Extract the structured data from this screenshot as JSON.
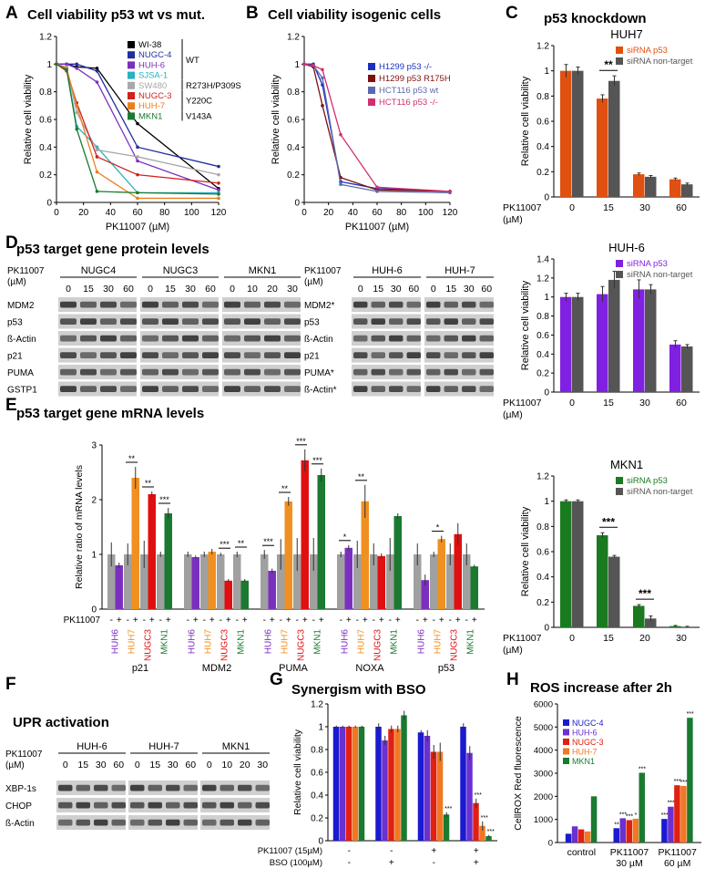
{
  "panels": {
    "A": {
      "label": "A",
      "title": "Cell viability p53 wt vs mut."
    },
    "B": {
      "label": "B",
      "title": "Cell viability isogenic cells"
    },
    "C": {
      "label": "C",
      "title": "p53 knockdown"
    },
    "D": {
      "label": "D",
      "title": "p53 target gene protein levels"
    },
    "E": {
      "label": "E",
      "title": "p53 target gene mRNA levels"
    },
    "F": {
      "label": "F",
      "title": "UPR activation"
    },
    "G": {
      "label": "G",
      "title": "Synergism with BSO"
    },
    "H": {
      "label": "H",
      "title": "ROS increase after 2h"
    }
  },
  "chart_data": [
    {
      "id": "A",
      "type": "line",
      "xlabel": "PK11007 (µM)",
      "ylabel": "Relative cell viability",
      "xlim": [
        0,
        120
      ],
      "ylim": [
        0,
        1.2
      ],
      "xticks": [
        "0",
        "20",
        "40",
        "60",
        "80",
        "100",
        "120"
      ],
      "yticks": [
        "0",
        "0.2",
        "0.4",
        "0.6",
        "0.8",
        "1",
        "1.2"
      ],
      "x": [
        0,
        7.5,
        15,
        30,
        60,
        120
      ],
      "series": [
        {
          "name": "WI-38",
          "color": "#000000",
          "values": [
            1,
            1,
            0.98,
            0.97,
            0.57,
            0.1
          ]
        },
        {
          "name": "NUGC-4",
          "color": "#1f2fa0",
          "values": [
            1,
            1,
            1,
            0.95,
            0.4,
            0.26
          ]
        },
        {
          "name": "HUH-6",
          "color": "#7b2fbf",
          "values": [
            1,
            1,
            0.97,
            0.87,
            0.3,
            0.09
          ]
        },
        {
          "name": "SJSA-1",
          "color": "#2ab0c0",
          "values": [
            1,
            0.97,
            0.55,
            0.4,
            0.07,
            0.07
          ]
        },
        {
          "name": "SW480",
          "color": "#a8a8a8",
          "values": [
            1,
            0.98,
            0.65,
            0.38,
            0.33,
            0.2
          ]
        },
        {
          "name": "NUGC-3",
          "color": "#d02020",
          "values": [
            1,
            0.95,
            0.72,
            0.33,
            0.2,
            0.14
          ]
        },
        {
          "name": "HUH-7",
          "color": "#e88020",
          "values": [
            1,
            0.97,
            0.7,
            0.22,
            0.03,
            0.03
          ]
        },
        {
          "name": "MKN1",
          "color": "#1a7a30",
          "values": [
            1,
            0.96,
            0.53,
            0.08,
            0.07,
            0.06
          ]
        }
      ],
      "groups": [
        {
          "label": "WT"
        },
        {
          "label": "R273H/P309S"
        },
        {
          "label": "Y220C"
        },
        {
          "label": "V143A"
        }
      ]
    },
    {
      "id": "B",
      "type": "line",
      "xlabel": "PK11007 (µM)",
      "ylabel": "Relative cell viability",
      "xlim": [
        0,
        120
      ],
      "ylim": [
        0,
        1.2
      ],
      "xticks": [
        "0",
        "20",
        "40",
        "60",
        "80",
        "100",
        "120"
      ],
      "yticks": [
        "0",
        "0.2",
        "0.4",
        "0.6",
        "0.8",
        "1",
        "1.2"
      ],
      "x": [
        0,
        7.5,
        15,
        30,
        60,
        120
      ],
      "series": [
        {
          "name": "H1299 p53 -/-",
          "color": "#1a2fc0",
          "values": [
            1,
            1,
            0.85,
            0.15,
            0.1,
            0.08
          ]
        },
        {
          "name": "H1299 p53 R175H",
          "color": "#801010",
          "values": [
            1,
            0.98,
            0.7,
            0.18,
            0.09,
            0.08
          ]
        },
        {
          "name": "HCT116 p53 wt",
          "color": "#5a6ab0",
          "values": [
            1,
            0.99,
            0.9,
            0.13,
            0.08,
            0.07
          ]
        },
        {
          "name": "HCT116 p53 -/-",
          "color": "#d03070",
          "values": [
            1,
            0.99,
            0.96,
            0.49,
            0.11,
            0.08
          ]
        }
      ]
    },
    {
      "id": "C-HUH7",
      "type": "bar",
      "subtitle": "HUH7",
      "ylabel": "Relative cell viability",
      "ylim": [
        0,
        1.2
      ],
      "yticks": [
        "0",
        "0.2",
        "0.4",
        "0.6",
        "0.8",
        "1",
        "1.2"
      ],
      "xlabel": "PK11007 (µM)",
      "categories": [
        "0",
        "15",
        "30",
        "60"
      ],
      "series": [
        {
          "name": "siRNA p53",
          "color": "#e05010",
          "values": [
            1,
            0.78,
            0.18,
            0.14
          ],
          "err": [
            0.05,
            0.03,
            0.01,
            0.01
          ]
        },
        {
          "name": "siRNA non-target",
          "color": "#555555",
          "values": [
            1,
            0.92,
            0.16,
            0.1
          ],
          "err": [
            0.03,
            0.04,
            0.01,
            0.01
          ]
        }
      ],
      "annotations": [
        {
          "category": "15",
          "text": "**"
        }
      ]
    },
    {
      "id": "C-HUH6",
      "type": "bar",
      "subtitle": "HUH-6",
      "ylabel": "Relative cell viability",
      "ylim": [
        0,
        1.4
      ],
      "yticks": [
        "0",
        "0.2",
        "0.4",
        "0.6",
        "0.8",
        "1",
        "1.2",
        "1.4"
      ],
      "xlabel": "PK11007 (µM)",
      "categories": [
        "0",
        "15",
        "30",
        "60"
      ],
      "series": [
        {
          "name": "siRNA p53",
          "color": "#8020e0",
          "values": [
            1,
            1.03,
            1.08,
            0.5
          ],
          "err": [
            0.04,
            0.08,
            0.1,
            0.04
          ]
        },
        {
          "name": "siRNA non-target",
          "color": "#555555",
          "values": [
            1,
            1.18,
            1.08,
            0.48
          ],
          "err": [
            0.04,
            0.09,
            0.05,
            0.02
          ]
        }
      ]
    },
    {
      "id": "C-MKN1",
      "type": "bar",
      "subtitle": "MKN1",
      "ylabel": "Relative cell viability",
      "ylim": [
        0,
        1.2
      ],
      "yticks": [
        "0",
        "0.2",
        "0.4",
        "0.6",
        "0.8",
        "1",
        "1.2"
      ],
      "xlabel": "PK11007 (µM)",
      "categories": [
        "0",
        "15",
        "20",
        "30"
      ],
      "series": [
        {
          "name": "siRNA p53",
          "color": "#1a7a20",
          "values": [
            1,
            0.73,
            0.17,
            0.01
          ],
          "err": [
            0.01,
            0.02,
            0.01,
            0.005
          ]
        },
        {
          "name": "siRNA non-target",
          "color": "#555555",
          "values": [
            1,
            0.56,
            0.07,
            0.005
          ],
          "err": [
            0.01,
            0.01,
            0.02,
            0.003
          ]
        }
      ],
      "annotations": [
        {
          "category": "15",
          "text": "***"
        },
        {
          "category": "20",
          "text": "***"
        }
      ]
    },
    {
      "id": "E",
      "type": "bar",
      "ylabel": "Relative ratio of mRNA levels",
      "ylim": [
        0,
        3
      ],
      "yticks": [
        "0",
        "1",
        "2",
        "3"
      ],
      "treatment_label": "PK11007",
      "genes": [
        "p21",
        "MDM2",
        "PUMA",
        "NOXA",
        "p53"
      ],
      "cells": [
        "HUH6",
        "HUH7",
        "NUGC3",
        "MKN1"
      ],
      "cell_colors": [
        "#7b2fbf",
        "#f09020",
        "#e01010",
        "#1a7a30"
      ],
      "treated": [
        [
          0.8,
          2.4,
          2.1,
          1.75
        ],
        [
          0.95,
          1.05,
          0.52,
          0.52
        ],
        [
          0.7,
          1.97,
          2.72,
          2.45
        ],
        [
          1.12,
          1.97,
          0.97,
          1.7
        ],
        [
          0.53,
          1.28,
          1.37,
          0.78
        ]
      ],
      "treated_err": [
        [
          0.05,
          0.2,
          0.05,
          0.1
        ],
        [
          0.03,
          0.05,
          0.03,
          0.03
        ],
        [
          0.04,
          0.08,
          0.2,
          0.12
        ],
        [
          0.05,
          0.3,
          0.05,
          0.05
        ],
        [
          0.1,
          0.06,
          0.2,
          0.03
        ]
      ],
      "control_err": [
        [
          0.22,
          0.2,
          0.25,
          0.05
        ],
        [
          0.05,
          0.05,
          0.03,
          0.05
        ],
        [
          0.08,
          0.28,
          0.3,
          0.3
        ],
        [
          0.05,
          0.25,
          0.2,
          0.3
        ],
        [
          0.2,
          0.05,
          0.2,
          0.2
        ]
      ],
      "stars": [
        [
          "",
          "**",
          "**",
          "***"
        ],
        [
          "",
          "",
          "***",
          "**"
        ],
        [
          "***",
          "**",
          "***",
          "***"
        ],
        [
          "*",
          "**",
          "",
          ""
        ],
        [
          "",
          "*",
          "",
          ""
        ]
      ]
    },
    {
      "id": "G",
      "type": "bar",
      "ylabel": "Relative cell viability",
      "ylim": [
        0,
        1.2
      ],
      "yticks": [
        "0",
        "0.2",
        "0.4",
        "0.6",
        "0.8",
        "1",
        "1.2"
      ],
      "conditions": [
        {
          "pk": "-",
          "bso": "-"
        },
        {
          "pk": "-",
          "bso": "+"
        },
        {
          "pk": "+",
          "bso": "-"
        },
        {
          "pk": "+",
          "bso": "+"
        }
      ],
      "row_labels": [
        "PK11007 (15µM)",
        "BSO (100µM)"
      ],
      "colors": [
        "#1a1ad0",
        "#6a30d0",
        "#e02010",
        "#f07820",
        "#1a7a30"
      ],
      "values": [
        [
          1,
          1,
          1,
          1,
          1
        ],
        [
          1,
          0.88,
          0.98,
          0.98,
          1.1
        ],
        [
          0.95,
          0.92,
          0.78,
          0.78,
          0.23
        ],
        [
          1,
          0.77,
          0.33,
          0.13,
          0.04
        ]
      ],
      "err": [
        [
          0.01,
          0.01,
          0.01,
          0.01,
          0.01
        ],
        [
          0.03,
          0.04,
          0.03,
          0.03,
          0.04
        ],
        [
          0.02,
          0.05,
          0.06,
          0.08,
          0.02
        ],
        [
          0.03,
          0.06,
          0.04,
          0.04,
          0.01
        ]
      ],
      "stars": [
        [
          "",
          "",
          "",
          "",
          ""
        ],
        [
          "",
          "",
          "",
          "",
          ""
        ],
        [
          "",
          "",
          "",
          "",
          "***"
        ],
        [
          "",
          "",
          "***",
          "***",
          "***"
        ]
      ]
    },
    {
      "id": "H",
      "type": "bar",
      "ylabel": "CellROX Red fluorescence",
      "ylim": [
        0,
        6000
      ],
      "yticks": [
        "0",
        "1000",
        "2000",
        "3000",
        "4000",
        "5000",
        "6000"
      ],
      "categories": [
        "control",
        "PK11007\n30 µM",
        "PK11007\n60 µM"
      ],
      "series": [
        {
          "name": "NUGC-4",
          "color": "#1a1ad0",
          "values": [
            380,
            620,
            1020
          ]
        },
        {
          "name": "HUH-6",
          "color": "#6a30d0",
          "values": [
            700,
            1050,
            1550
          ]
        },
        {
          "name": "NUGC-3",
          "color": "#e02010",
          "values": [
            570,
            970,
            2480
          ]
        },
        {
          "name": "HUH-7",
          "color": "#f07820",
          "values": [
            480,
            1030,
            2450
          ]
        },
        {
          "name": "MKN1",
          "color": "#1a7a30",
          "values": [
            2000,
            3020,
            5400
          ]
        }
      ],
      "stars": [
        [
          "",
          "",
          "",
          "",
          ""
        ],
        [
          "**",
          "***",
          "***",
          "*",
          "***"
        ],
        [
          "***",
          "***",
          "***",
          "***",
          "***"
        ]
      ]
    }
  ],
  "blots": {
    "D_left": {
      "dose_label": [
        "PK11007",
        "(µM)"
      ],
      "groups": [
        {
          "name": "NUGC4",
          "doses": [
            "0",
            "15",
            "30",
            "60"
          ]
        },
        {
          "name": "NUGC3",
          "doses": [
            "0",
            "15",
            "30",
            "60"
          ]
        },
        {
          "name": "MKN1",
          "doses": [
            "0",
            "10",
            "20",
            "30"
          ]
        }
      ],
      "rows": [
        "MDM2",
        "p53",
        "ß-Actin",
        "p21",
        "PUMA",
        "GSTP1"
      ]
    },
    "D_right": {
      "dose_label": [
        "PK11007",
        "(µM)"
      ],
      "groups": [
        {
          "name": "HUH-6",
          "doses": [
            "0",
            "15",
            "30",
            "60"
          ]
        },
        {
          "name": "HUH-7",
          "doses": [
            "0",
            "15",
            "30",
            "60"
          ]
        }
      ],
      "rows": [
        "MDM2*",
        "p53",
        "ß-Actin",
        "p21",
        "PUMA*",
        "ß-Actin*"
      ]
    },
    "F": {
      "dose_label": [
        "PK11007",
        "(µM)"
      ],
      "groups": [
        {
          "name": "HUH-6",
          "doses": [
            "0",
            "15",
            "30",
            "60"
          ]
        },
        {
          "name": "HUH-7",
          "doses": [
            "0",
            "15",
            "30",
            "60"
          ]
        },
        {
          "name": "MKN1",
          "doses": [
            "0",
            "10",
            "20",
            "30"
          ]
        }
      ],
      "rows": [
        "XBP-1s",
        "CHOP",
        "ß-Actin"
      ]
    }
  }
}
